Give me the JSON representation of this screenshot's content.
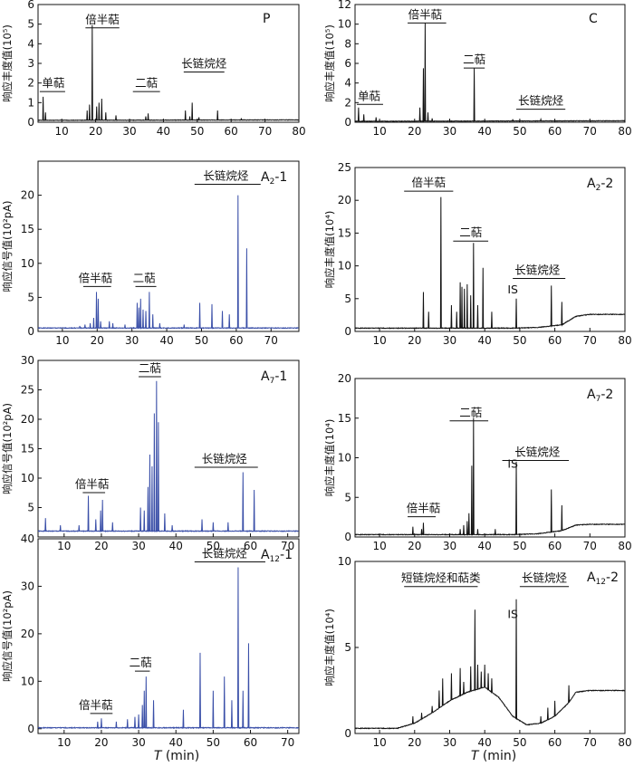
{
  "figure": {
    "x_axis_title_italic": "T",
    "x_axis_title_unit": " (min)"
  },
  "chart_data": [
    {
      "id": "P",
      "type": "line",
      "color": "#111111",
      "panel_label": "P",
      "ylabel": "响应丰度值(10⁵)",
      "xlim": [
        3,
        80
      ],
      "ylim": [
        0,
        6
      ],
      "xticks": [
        10,
        20,
        30,
        40,
        50,
        60,
        70,
        80
      ],
      "yticks": [
        0,
        1,
        2,
        3,
        4,
        5,
        6
      ],
      "baseline": [
        [
          3,
          0.1
        ],
        [
          80,
          0.12
        ]
      ],
      "peaks": [
        [
          4.5,
          1.3
        ],
        [
          5.2,
          0.5
        ],
        [
          17.5,
          0.6
        ],
        [
          18.2,
          0.9
        ],
        [
          19.0,
          4.95
        ],
        [
          20.3,
          0.8
        ],
        [
          21.0,
          1.0
        ],
        [
          21.8,
          1.2
        ],
        [
          23.0,
          0.5
        ],
        [
          26.0,
          0.35
        ],
        [
          34.8,
          0.3
        ],
        [
          35.5,
          0.45
        ],
        [
          46.5,
          0.6
        ],
        [
          47.8,
          0.3
        ],
        [
          48.5,
          1.0
        ],
        [
          50.5,
          0.25
        ],
        [
          56.0,
          0.6
        ],
        [
          63.0,
          0.2
        ]
      ],
      "annotations": [
        {
          "text": "单萜",
          "x": 7.5,
          "y": 1.7,
          "x1": 3.5,
          "x2": 11
        },
        {
          "text": "倍半萜",
          "x": 22,
          "y": 4.95,
          "x1": 17,
          "x2": 27
        },
        {
          "text": "二萜",
          "x": 35,
          "y": 1.7,
          "x1": 31,
          "x2": 39
        },
        {
          "text": "长链烷烃",
          "x": 52,
          "y": 2.7,
          "x1": 46,
          "x2": 58
        }
      ]
    },
    {
      "id": "C",
      "type": "line",
      "color": "#111111",
      "panel_label": "C",
      "ylabel": "响应丰度值(10⁵)",
      "xlim": [
        3,
        80
      ],
      "ylim": [
        0,
        12
      ],
      "xticks": [
        10,
        20,
        30,
        40,
        50,
        60,
        70,
        80
      ],
      "yticks": [
        0,
        2,
        4,
        6,
        8,
        10,
        12
      ],
      "baseline": [
        [
          3,
          0.1
        ],
        [
          80,
          0.15
        ]
      ],
      "peaks": [
        [
          4.0,
          1.5
        ],
        [
          5.5,
          0.8
        ],
        [
          9.0,
          0.5
        ],
        [
          21.5,
          1.5
        ],
        [
          22.5,
          5.5
        ],
        [
          23.0,
          10.1
        ],
        [
          23.8,
          1.0
        ],
        [
          25.0,
          0.4
        ],
        [
          37.0,
          5.5
        ],
        [
          48.0,
          0.3
        ],
        [
          56.0,
          0.3
        ]
      ],
      "annotations": [
        {
          "text": "单萜",
          "x": 7,
          "y": 2.1,
          "x1": 3.5,
          "x2": 11
        },
        {
          "text": "倍半萜",
          "x": 23,
          "y": 10.4,
          "x1": 18,
          "x2": 29
        },
        {
          "text": "二萜",
          "x": 37,
          "y": 5.8,
          "x1": 34,
          "x2": 40
        },
        {
          "text": "长链烷烃",
          "x": 56,
          "y": 1.6,
          "x1": 49,
          "x2": 63
        }
      ]
    },
    {
      "id": "A2-1",
      "type": "line",
      "color": "#3a4fa8",
      "panel_label_main": "A",
      "panel_label_sub": "2",
      "panel_label_suffix": "-1",
      "ylabel": "响应信号值(10²pA)",
      "xlim": [
        3,
        78
      ],
      "ylim": [
        0,
        25
      ],
      "xticks": [
        10,
        20,
        30,
        40,
        50,
        60,
        70
      ],
      "yticks": [
        0,
        5,
        10,
        15,
        20
      ],
      "baseline": [
        [
          3,
          0.5
        ],
        [
          78,
          0.5
        ]
      ],
      "peaks": [
        [
          15.0,
          0.8
        ],
        [
          16.5,
          1.0
        ],
        [
          18.0,
          1.2
        ],
        [
          19.0,
          2.0
        ],
        [
          19.8,
          5.8
        ],
        [
          20.3,
          4.8
        ],
        [
          21.0,
          1.5
        ],
        [
          23.5,
          1.5
        ],
        [
          24.5,
          1.2
        ],
        [
          28.0,
          1.0
        ],
        [
          31.5,
          4.2
        ],
        [
          32.0,
          3.5
        ],
        [
          32.5,
          4.8
        ],
        [
          33.2,
          3.2
        ],
        [
          34.0,
          3.0
        ],
        [
          35.0,
          5.8
        ],
        [
          36.0,
          2.5
        ],
        [
          38.0,
          1.2
        ],
        [
          45.0,
          1.0
        ],
        [
          49.5,
          4.2
        ],
        [
          53.0,
          4.0
        ],
        [
          56.0,
          3.0
        ],
        [
          58.0,
          2.5
        ],
        [
          60.5,
          20.0
        ],
        [
          63.0,
          12.2
        ]
      ],
      "annotations": [
        {
          "text": "倍半萜",
          "x": 19.5,
          "y": 7.0,
          "x1": 16,
          "x2": 24
        },
        {
          "text": "二萜",
          "x": 33.5,
          "y": 7.0,
          "x1": 31,
          "x2": 37
        },
        {
          "text": "长链烷烃",
          "x": 57,
          "y": 22.0,
          "x1": 48,
          "x2": 67
        }
      ]
    },
    {
      "id": "A2-2",
      "type": "line",
      "color": "#111111",
      "panel_label_main": "A",
      "panel_label_sub": "2",
      "panel_label_suffix": "-2",
      "ylabel": "响应丰度值(10⁴)",
      "xlim": [
        3,
        80
      ],
      "ylim": [
        0,
        25
      ],
      "xticks": [
        10,
        20,
        30,
        40,
        50,
        60,
        70,
        80
      ],
      "yticks": [
        0,
        5,
        10,
        15,
        20,
        25
      ],
      "baseline": [
        [
          3,
          0.5
        ],
        [
          48,
          0.5
        ],
        [
          55,
          0.6
        ],
        [
          62,
          1.0
        ],
        [
          66,
          2.3
        ],
        [
          70,
          2.6
        ],
        [
          80,
          2.6
        ]
      ],
      "peaks": [
        [
          22.5,
          6.0
        ],
        [
          24.0,
          3.0
        ],
        [
          27.5,
          20.5
        ],
        [
          30.5,
          4.0
        ],
        [
          32.0,
          3.0
        ],
        [
          33.0,
          7.5
        ],
        [
          33.5,
          6.8
        ],
        [
          34.2,
          6.5
        ],
        [
          35.0,
          7.2
        ],
        [
          36.0,
          5.5
        ],
        [
          36.8,
          13.5
        ],
        [
          38.0,
          4.0
        ],
        [
          39.5,
          9.7
        ],
        [
          42.0,
          3.0
        ],
        [
          49.0,
          5.0
        ],
        [
          59.0,
          7.0
        ],
        [
          62.0,
          4.5
        ]
      ],
      "annotations": [
        {
          "text": "倍半萜",
          "x": 24,
          "y": 21.8,
          "x1": 17,
          "x2": 31
        },
        {
          "text": "二萜",
          "x": 36,
          "y": 14.2,
          "x1": 31,
          "x2": 41
        },
        {
          "text": "长链烷烃",
          "x": 55,
          "y": 8.5,
          "x1": 48,
          "x2": 63
        },
        {
          "text": "IS",
          "x": 46.5,
          "y": 5.5,
          "x1": null,
          "x2": null
        }
      ]
    },
    {
      "id": "A7-1",
      "type": "line",
      "color": "#3a4fa8",
      "panel_label_main": "A",
      "panel_label_sub": "7",
      "panel_label_suffix": "-1",
      "ylabel": "响应信号值(10²pA)",
      "xlim": [
        3,
        73
      ],
      "ylim": [
        0,
        30
      ],
      "xticks": [
        10,
        20,
        30,
        40,
        50,
        60,
        70
      ],
      "yticks": [
        5,
        10,
        15,
        20,
        25,
        30
      ],
      "baseline": [
        [
          3,
          1.0
        ],
        [
          73,
          1.0
        ]
      ],
      "peaks": [
        [
          5.0,
          3.2
        ],
        [
          9.0,
          2.0
        ],
        [
          14.0,
          2.0
        ],
        [
          16.5,
          7.0
        ],
        [
          18.5,
          3.0
        ],
        [
          19.8,
          4.5
        ],
        [
          20.3,
          6.3
        ],
        [
          23.0,
          2.5
        ],
        [
          30.5,
          5.0
        ],
        [
          31.5,
          4.5
        ],
        [
          32.5,
          8.5
        ],
        [
          33.0,
          14.0
        ],
        [
          33.6,
          12.0
        ],
        [
          34.2,
          21.0
        ],
        [
          34.8,
          26.5
        ],
        [
          35.3,
          19.5
        ],
        [
          37.0,
          4.0
        ],
        [
          39.0,
          2.0
        ],
        [
          47.0,
          3.0
        ],
        [
          50.0,
          2.5
        ],
        [
          54.0,
          2.5
        ],
        [
          58.0,
          11.0
        ],
        [
          61.0,
          8.0
        ]
      ],
      "annotations": [
        {
          "text": "倍半萜",
          "x": 17.5,
          "y": 8.0,
          "x1": 15,
          "x2": 21
        },
        {
          "text": "二萜",
          "x": 33,
          "y": 27.7,
          "x1": 30,
          "x2": 36
        },
        {
          "text": "长链烷烃",
          "x": 53,
          "y": 12.3,
          "x1": 45,
          "x2": 62
        }
      ]
    },
    {
      "id": "A7-2",
      "type": "line",
      "color": "#111111",
      "panel_label_main": "A",
      "panel_label_sub": "7",
      "panel_label_suffix": "-2",
      "ylabel": "响应丰度值(10⁴)",
      "xlim": [
        3,
        80
      ],
      "ylim": [
        0,
        20
      ],
      "xticks": [
        10,
        20,
        30,
        40,
        50,
        60,
        70,
        80
      ],
      "yticks": [
        0,
        5,
        10,
        15,
        20
      ],
      "baseline": [
        [
          3,
          0.3
        ],
        [
          48,
          0.3
        ],
        [
          55,
          0.4
        ],
        [
          62,
          0.8
        ],
        [
          66,
          1.5
        ],
        [
          70,
          1.6
        ],
        [
          80,
          1.6
        ]
      ],
      "peaks": [
        [
          19.5,
          1.3
        ],
        [
          22.0,
          1.0
        ],
        [
          22.5,
          1.8
        ],
        [
          33.0,
          1.0
        ],
        [
          34.0,
          1.5
        ],
        [
          35.0,
          2.0
        ],
        [
          35.5,
          3.0
        ],
        [
          36.3,
          9.0
        ],
        [
          36.8,
          15.0
        ],
        [
          38.0,
          1.0
        ],
        [
          43.0,
          1.0
        ],
        [
          49.0,
          9.5
        ],
        [
          59.0,
          6.0
        ],
        [
          62.0,
          4.0
        ]
      ],
      "annotations": [
        {
          "text": "倍半萜",
          "x": 22.5,
          "y": 2.9,
          "x1": 18,
          "x2": 26
        },
        {
          "text": "二萜",
          "x": 36,
          "y": 15.0,
          "x1": 30,
          "x2": 41
        },
        {
          "text": "长链烷烃",
          "x": 55,
          "y": 10.0,
          "x1": 45,
          "x2": 64
        },
        {
          "text": "IS",
          "x": 46.5,
          "y": 8.5,
          "x1": null,
          "x2": null
        }
      ]
    },
    {
      "id": "A12-1",
      "type": "line",
      "color": "#3a4fa8",
      "panel_label_main": "A",
      "panel_label_sub": "12",
      "panel_label_suffix": "-1",
      "ylabel": "响应信号值(10²pA)",
      "xlim": [
        3,
        73
      ],
      "ylim": [
        -1,
        40
      ],
      "xticks": [
        10,
        20,
        30,
        40,
        50,
        60,
        70
      ],
      "yticks": [
        0,
        10,
        20,
        30,
        40
      ],
      "baseline": [
        [
          3,
          0.2
        ],
        [
          73,
          0.2
        ]
      ],
      "peaks": [
        [
          19.0,
          1.5
        ],
        [
          20.0,
          2.2
        ],
        [
          24.0,
          1.5
        ],
        [
          27.0,
          2.0
        ],
        [
          29.0,
          2.5
        ],
        [
          30.0,
          3.0
        ],
        [
          31.0,
          5.0
        ],
        [
          31.5,
          8.0
        ],
        [
          32.0,
          11.0
        ],
        [
          34.0,
          6.0
        ],
        [
          42.0,
          4.0
        ],
        [
          46.5,
          16.0
        ],
        [
          50.0,
          8.0
        ],
        [
          53.0,
          11.0
        ],
        [
          55.0,
          6.0
        ],
        [
          56.7,
          34.0
        ],
        [
          58.0,
          8.0
        ],
        [
          59.5,
          18.0
        ]
      ],
      "annotations": [
        {
          "text": "倍半萜",
          "x": 18.5,
          "y": 3.8,
          "x1": 17,
          "x2": 23
        },
        {
          "text": "二萜",
          "x": 30.5,
          "y": 12.7,
          "x1": 29,
          "x2": 33
        },
        {
          "text": "长链烷烃",
          "x": 53,
          "y": 35.7,
          "x1": 45,
          "x2": 64
        }
      ]
    },
    {
      "id": "A12-2",
      "type": "line",
      "color": "#111111",
      "panel_label_main": "A",
      "panel_label_sub": "12",
      "panel_label_suffix": "-2",
      "ylabel": "响应丰度值(10⁴)",
      "xlim": [
        3,
        80
      ],
      "ylim": [
        0,
        10
      ],
      "xticks": [
        10,
        20,
        30,
        40,
        50,
        60,
        70,
        80
      ],
      "yticks": [
        0,
        5,
        10
      ],
      "baseline": [
        [
          3,
          0.3
        ],
        [
          15,
          0.3
        ],
        [
          20,
          0.6
        ],
        [
          25,
          1.2
        ],
        [
          30,
          1.9
        ],
        [
          35,
          2.4
        ],
        [
          40,
          2.7
        ],
        [
          44,
          2.1
        ],
        [
          48,
          1.0
        ],
        [
          52,
          0.5
        ],
        [
          56,
          0.6
        ],
        [
          60,
          1.0
        ],
        [
          64,
          1.8
        ],
        [
          66,
          2.4
        ],
        [
          70,
          2.5
        ],
        [
          80,
          2.5
        ]
      ],
      "peaks": [
        [
          19.5,
          1.0
        ],
        [
          22.0,
          1.2
        ],
        [
          25.0,
          1.6
        ],
        [
          27.0,
          2.5
        ],
        [
          28.0,
          3.2
        ],
        [
          30.5,
          3.5
        ],
        [
          33.0,
          3.8
        ],
        [
          34.0,
          3.0
        ],
        [
          36.0,
          3.9
        ],
        [
          37.2,
          7.2
        ],
        [
          38.0,
          4.0
        ],
        [
          39.0,
          3.6
        ],
        [
          40.0,
          4.0
        ],
        [
          41.0,
          3.5
        ],
        [
          42.0,
          3.2
        ],
        [
          49.0,
          7.8
        ],
        [
          56.0,
          1.0
        ],
        [
          58.0,
          1.5
        ],
        [
          60.0,
          1.9
        ],
        [
          64.0,
          2.8
        ]
      ],
      "annotations": [
        {
          "text": "短链烷烃和萜类",
          "x": 27.5,
          "y": 8.7,
          "x1": 17,
          "x2": 38
        },
        {
          "text": "长链烷烃",
          "x": 57,
          "y": 8.7,
          "x1": 50,
          "x2": 64
        },
        {
          "text": "IS",
          "x": 46.5,
          "y": 6.6,
          "x1": null,
          "x2": null
        }
      ]
    }
  ]
}
